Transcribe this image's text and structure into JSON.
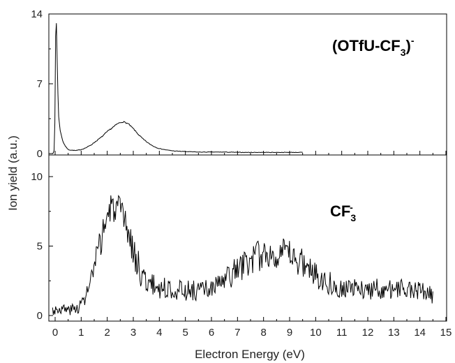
{
  "chart_data": [
    {
      "type": "line",
      "panel": "top",
      "annotation": {
        "main": "(OTfU-CF",
        "sub": "3",
        "close": ")",
        "sup": "-"
      },
      "xlim": [
        0,
        15
      ],
      "ylim": [
        0,
        14
      ],
      "yticks": [
        0,
        7,
        14
      ],
      "x_extent": [
        -0.1,
        9.5
      ],
      "series": [
        {
          "noise": 0.07,
          "seed": 7,
          "points": [
            [
              -0.1,
              0.0
            ],
            [
              -0.05,
              0.05
            ],
            [
              -0.02,
              1.0
            ],
            [
              0.0,
              6.0
            ],
            [
              0.02,
              12.5
            ],
            [
              0.04,
              13.7
            ],
            [
              0.06,
              12.0
            ],
            [
              0.09,
              7.5
            ],
            [
              0.13,
              3.8
            ],
            [
              0.2,
              2.2
            ],
            [
              0.3,
              1.2
            ],
            [
              0.4,
              0.7
            ],
            [
              0.5,
              0.4
            ],
            [
              0.6,
              0.35
            ],
            [
              0.8,
              0.3
            ],
            [
              1.0,
              0.4
            ],
            [
              1.2,
              0.6
            ],
            [
              1.4,
              0.9
            ],
            [
              1.6,
              1.3
            ],
            [
              1.8,
              1.7
            ],
            [
              2.0,
              2.2
            ],
            [
              2.2,
              2.6
            ],
            [
              2.4,
              3.0
            ],
            [
              2.6,
              3.2
            ],
            [
              2.8,
              3.0
            ],
            [
              3.0,
              2.5
            ],
            [
              3.2,
              1.9
            ],
            [
              3.4,
              1.4
            ],
            [
              3.6,
              1.0
            ],
            [
              3.8,
              0.7
            ],
            [
              4.0,
              0.5
            ],
            [
              4.3,
              0.35
            ],
            [
              4.6,
              0.25
            ],
            [
              5.0,
              0.2
            ],
            [
              5.5,
              0.15
            ],
            [
              6.0,
              0.15
            ],
            [
              6.5,
              0.15
            ],
            [
              7.0,
              0.12
            ],
            [
              7.5,
              0.12
            ],
            [
              8.0,
              0.12
            ],
            [
              8.5,
              0.12
            ],
            [
              9.0,
              0.12
            ],
            [
              9.5,
              0.12
            ]
          ]
        }
      ]
    },
    {
      "type": "line",
      "panel": "bottom",
      "annotation": {
        "main": "CF",
        "sub": "3",
        "sup": "-"
      },
      "xlim": [
        0,
        15
      ],
      "ylim": [
        0,
        10
      ],
      "yticks": [
        0,
        5,
        10
      ],
      "x_extent": [
        -0.1,
        14.5
      ],
      "series": [
        {
          "noise": 0.85,
          "seed": 3,
          "points": [
            [
              -0.1,
              0.4
            ],
            [
              0.2,
              0.5
            ],
            [
              0.5,
              0.4
            ],
            [
              0.8,
              0.5
            ],
            [
              1.0,
              0.8
            ],
            [
              1.2,
              1.5
            ],
            [
              1.4,
              2.6
            ],
            [
              1.6,
              4.0
            ],
            [
              1.8,
              5.8
            ],
            [
              2.0,
              7.2
            ],
            [
              2.2,
              7.8
            ],
            [
              2.4,
              7.6
            ],
            [
              2.6,
              7.0
            ],
            [
              2.8,
              6.0
            ],
            [
              3.0,
              4.7
            ],
            [
              3.2,
              3.5
            ],
            [
              3.4,
              2.7
            ],
            [
              3.6,
              2.3
            ],
            [
              4.0,
              2.0
            ],
            [
              4.5,
              1.9
            ],
            [
              5.0,
              1.8
            ],
            [
              5.5,
              1.8
            ],
            [
              6.0,
              1.9
            ],
            [
              6.5,
              2.5
            ],
            [
              7.0,
              3.3
            ],
            [
              7.5,
              4.0
            ],
            [
              8.0,
              4.4
            ],
            [
              8.5,
              4.5
            ],
            [
              9.0,
              4.3
            ],
            [
              9.5,
              3.8
            ],
            [
              10.0,
              3.0
            ],
            [
              10.5,
              2.4
            ],
            [
              11.0,
              2.0
            ],
            [
              11.5,
              1.9
            ],
            [
              12.0,
              1.9
            ],
            [
              12.5,
              1.9
            ],
            [
              13.0,
              1.9
            ],
            [
              13.5,
              1.9
            ],
            [
              14.0,
              1.8
            ],
            [
              14.3,
              1.6
            ],
            [
              14.5,
              1.3
            ]
          ]
        }
      ]
    }
  ],
  "x_axis": {
    "label": "Electron Energy (eV)",
    "ticks": [
      "0",
      "1",
      "2",
      "3",
      "4",
      "5",
      "6",
      "7",
      "8",
      "9",
      "10",
      "11",
      "12",
      "13",
      "14",
      "15"
    ]
  },
  "y_axis": {
    "label": "Ion yield (a.u.)"
  }
}
